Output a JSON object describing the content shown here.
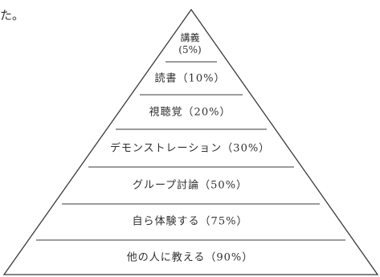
{
  "fragment_text": "た。",
  "pyramid": {
    "levels": [
      {
        "name": "講義",
        "percent": "(5%)"
      },
      {
        "label": "読書（10%）"
      },
      {
        "label": "視聴覚（20%）"
      },
      {
        "label": "デモンストレーション（30%）"
      },
      {
        "label": "グループ討論（50%）"
      },
      {
        "label": "自ら体験する（75%）"
      },
      {
        "label": "他の人に教える（90%）"
      }
    ]
  },
  "colors": {
    "line": "#3a3a3a",
    "text": "#2f2f2f"
  }
}
